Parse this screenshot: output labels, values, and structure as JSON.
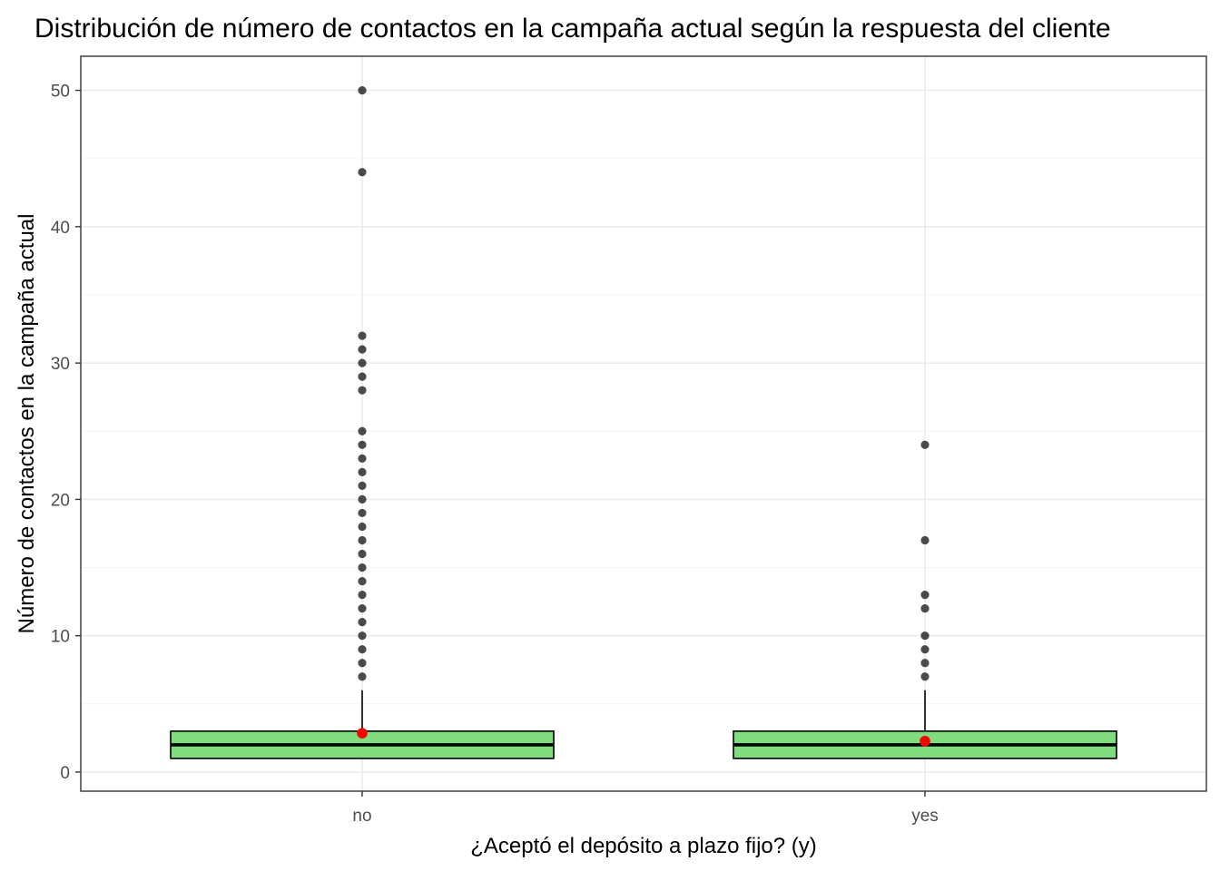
{
  "chart_data": {
    "type": "boxplot",
    "title": "Distribución de número de contactos en la campaña actual según la respuesta del cliente",
    "xlabel": "¿Aceptó el depósito a plazo fijo? (y)",
    "ylabel": "Número de contactos en la campaña actual",
    "categories": [
      "no",
      "yes"
    ],
    "ylim": [
      -1.4,
      52.5
    ],
    "yticks": [
      0,
      10,
      20,
      30,
      40,
      50
    ],
    "grid": true,
    "box_color": "#7FDD7F",
    "mean_color": "#FF0000",
    "outlier_color": "#000000",
    "boxes": [
      {
        "category": "no",
        "q1": 1,
        "median": 2,
        "q3": 3,
        "whisker_low": 1,
        "whisker_high": 6,
        "mean": 2.85,
        "outliers": [
          7,
          8,
          9,
          10,
          11,
          12,
          13,
          14,
          15,
          16,
          17,
          18,
          19,
          20,
          21,
          22,
          23,
          24,
          25,
          28,
          29,
          30,
          31,
          32,
          44,
          50
        ]
      },
      {
        "category": "yes",
        "q1": 1,
        "median": 2,
        "q3": 3,
        "whisker_low": 1,
        "whisker_high": 6,
        "mean": 2.27,
        "outliers": [
          7,
          8,
          9,
          10,
          12,
          13,
          17,
          24
        ]
      }
    ]
  }
}
